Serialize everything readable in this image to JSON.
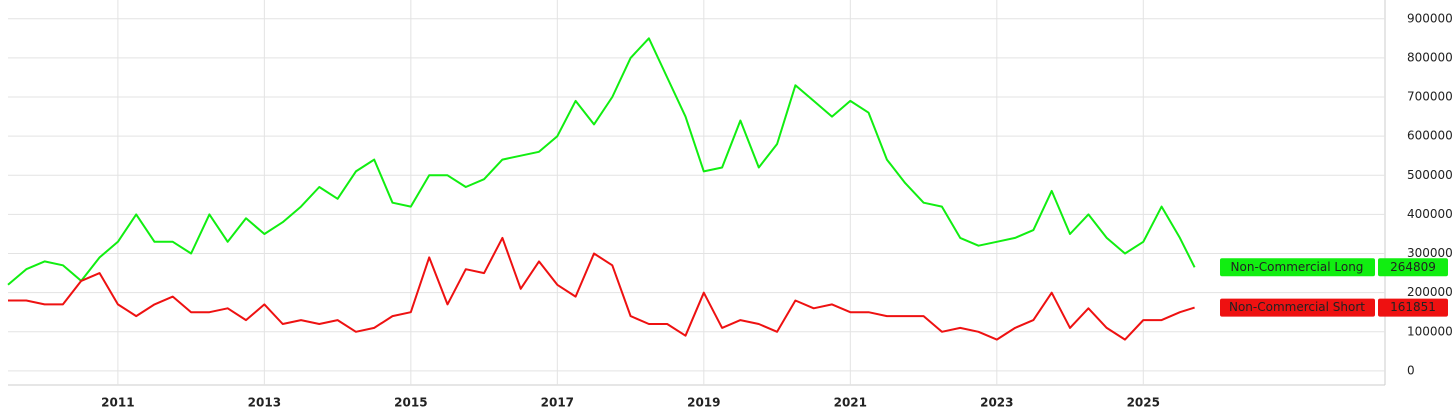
{
  "chart_data": {
    "type": "line",
    "x": [
      2009.5,
      2009.75,
      2010.0,
      2010.25,
      2010.5,
      2010.75,
      2011.0,
      2011.25,
      2011.5,
      2011.75,
      2012.0,
      2012.25,
      2012.5,
      2012.75,
      2013.0,
      2013.25,
      2013.5,
      2013.75,
      2014.0,
      2014.25,
      2014.5,
      2014.75,
      2015.0,
      2015.25,
      2015.5,
      2015.75,
      2016.0,
      2016.25,
      2016.5,
      2016.75,
      2017.0,
      2017.25,
      2017.5,
      2017.75,
      2018.0,
      2018.25,
      2018.5,
      2018.75,
      2019.0,
      2019.25,
      2019.5,
      2019.75,
      2020.0,
      2020.25,
      2020.5,
      2020.75,
      2021.0,
      2021.25,
      2021.5,
      2021.75,
      2022.0,
      2022.25,
      2022.5,
      2022.75,
      2023.0,
      2023.25,
      2023.5,
      2023.75,
      2024.0,
      2024.25,
      2024.5,
      2024.75,
      2025.0,
      2025.25,
      2025.5,
      2025.7
    ],
    "series": [
      {
        "name": "Non-Commercial Long",
        "color": "#11ee11",
        "values": [
          220000,
          260000,
          280000,
          270000,
          230000,
          290000,
          330000,
          400000,
          330000,
          330000,
          300000,
          400000,
          330000,
          390000,
          350000,
          380000,
          420000,
          470000,
          440000,
          510000,
          540000,
          430000,
          420000,
          500000,
          500000,
          470000,
          490000,
          540000,
          550000,
          560000,
          600000,
          690000,
          630000,
          700000,
          800000,
          850000,
          750000,
          650000,
          510000,
          520000,
          640000,
          520000,
          580000,
          730000,
          690000,
          650000,
          690000,
          660000,
          540000,
          480000,
          430000,
          420000,
          340000,
          320000,
          330000,
          340000,
          360000,
          460000,
          350000,
          400000,
          340000,
          300000,
          330000,
          420000,
          340000,
          264809
        ]
      },
      {
        "name": "Non-Commercial Short",
        "color": "#ee1111",
        "values": [
          180000,
          180000,
          170000,
          170000,
          230000,
          250000,
          170000,
          140000,
          170000,
          190000,
          150000,
          150000,
          160000,
          130000,
          170000,
          120000,
          130000,
          120000,
          130000,
          100000,
          110000,
          140000,
          150000,
          290000,
          170000,
          260000,
          250000,
          340000,
          210000,
          280000,
          220000,
          190000,
          300000,
          270000,
          140000,
          120000,
          120000,
          90000,
          200000,
          110000,
          130000,
          120000,
          100000,
          180000,
          160000,
          170000,
          150000,
          150000,
          140000,
          140000,
          140000,
          100000,
          110000,
          100000,
          80000,
          110000,
          130000,
          200000,
          110000,
          160000,
          110000,
          80000,
          130000,
          130000,
          150000,
          161851
        ]
      }
    ],
    "xlim": [
      2009.5,
      2028.3
    ],
    "xticks": [
      2011,
      2013,
      2015,
      2017,
      2019,
      2021,
      2023,
      2025
    ],
    "ylim": [
      -36000,
      948000
    ],
    "yticks": [
      0,
      100000,
      200000,
      300000,
      400000,
      500000,
      600000,
      700000,
      800000,
      900000
    ],
    "grid": true
  }
}
